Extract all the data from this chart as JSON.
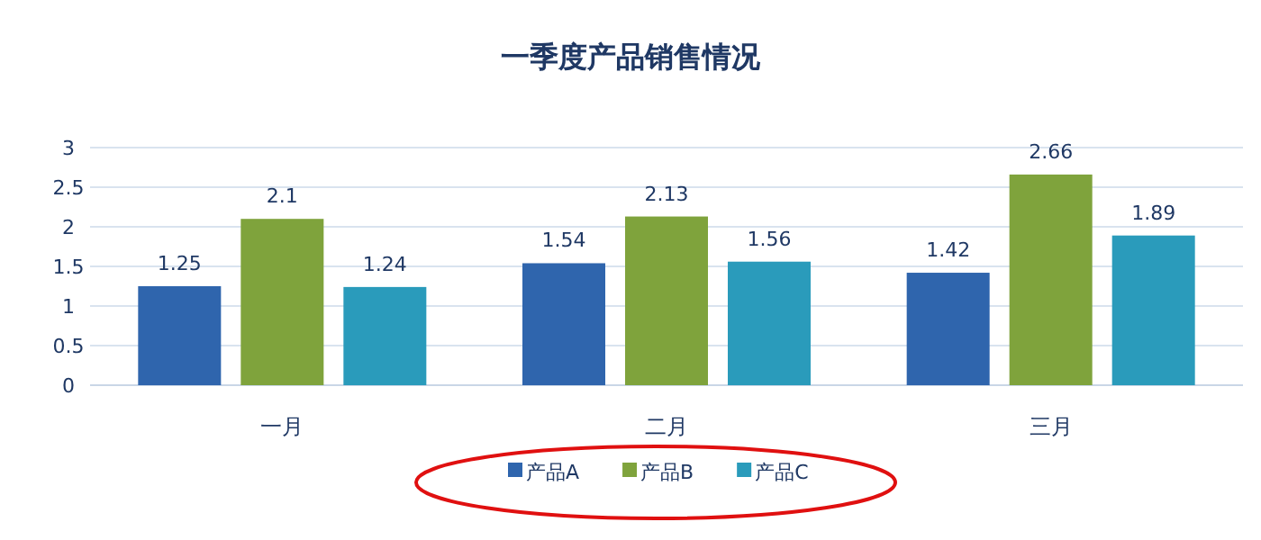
{
  "chart_data": {
    "type": "bar",
    "title": "一季度产品销售情况",
    "categories": [
      "一月",
      "二月",
      "三月"
    ],
    "series": [
      {
        "name": "产品A",
        "color": "#2f65ad",
        "values": [
          1.25,
          1.54,
          1.42
        ]
      },
      {
        "name": "产品B",
        "color": "#7fa33c",
        "values": [
          2.1,
          2.13,
          2.66
        ]
      },
      {
        "name": "产品C",
        "color": "#2a9bbb",
        "values": [
          1.24,
          1.56,
          1.89
        ]
      }
    ],
    "ylim": [
      0,
      3
    ],
    "yticks": [
      0,
      0.5,
      1,
      1.5,
      2,
      2.5,
      3
    ],
    "grid": "y",
    "legend": "bottom",
    "data_labels": true
  }
}
